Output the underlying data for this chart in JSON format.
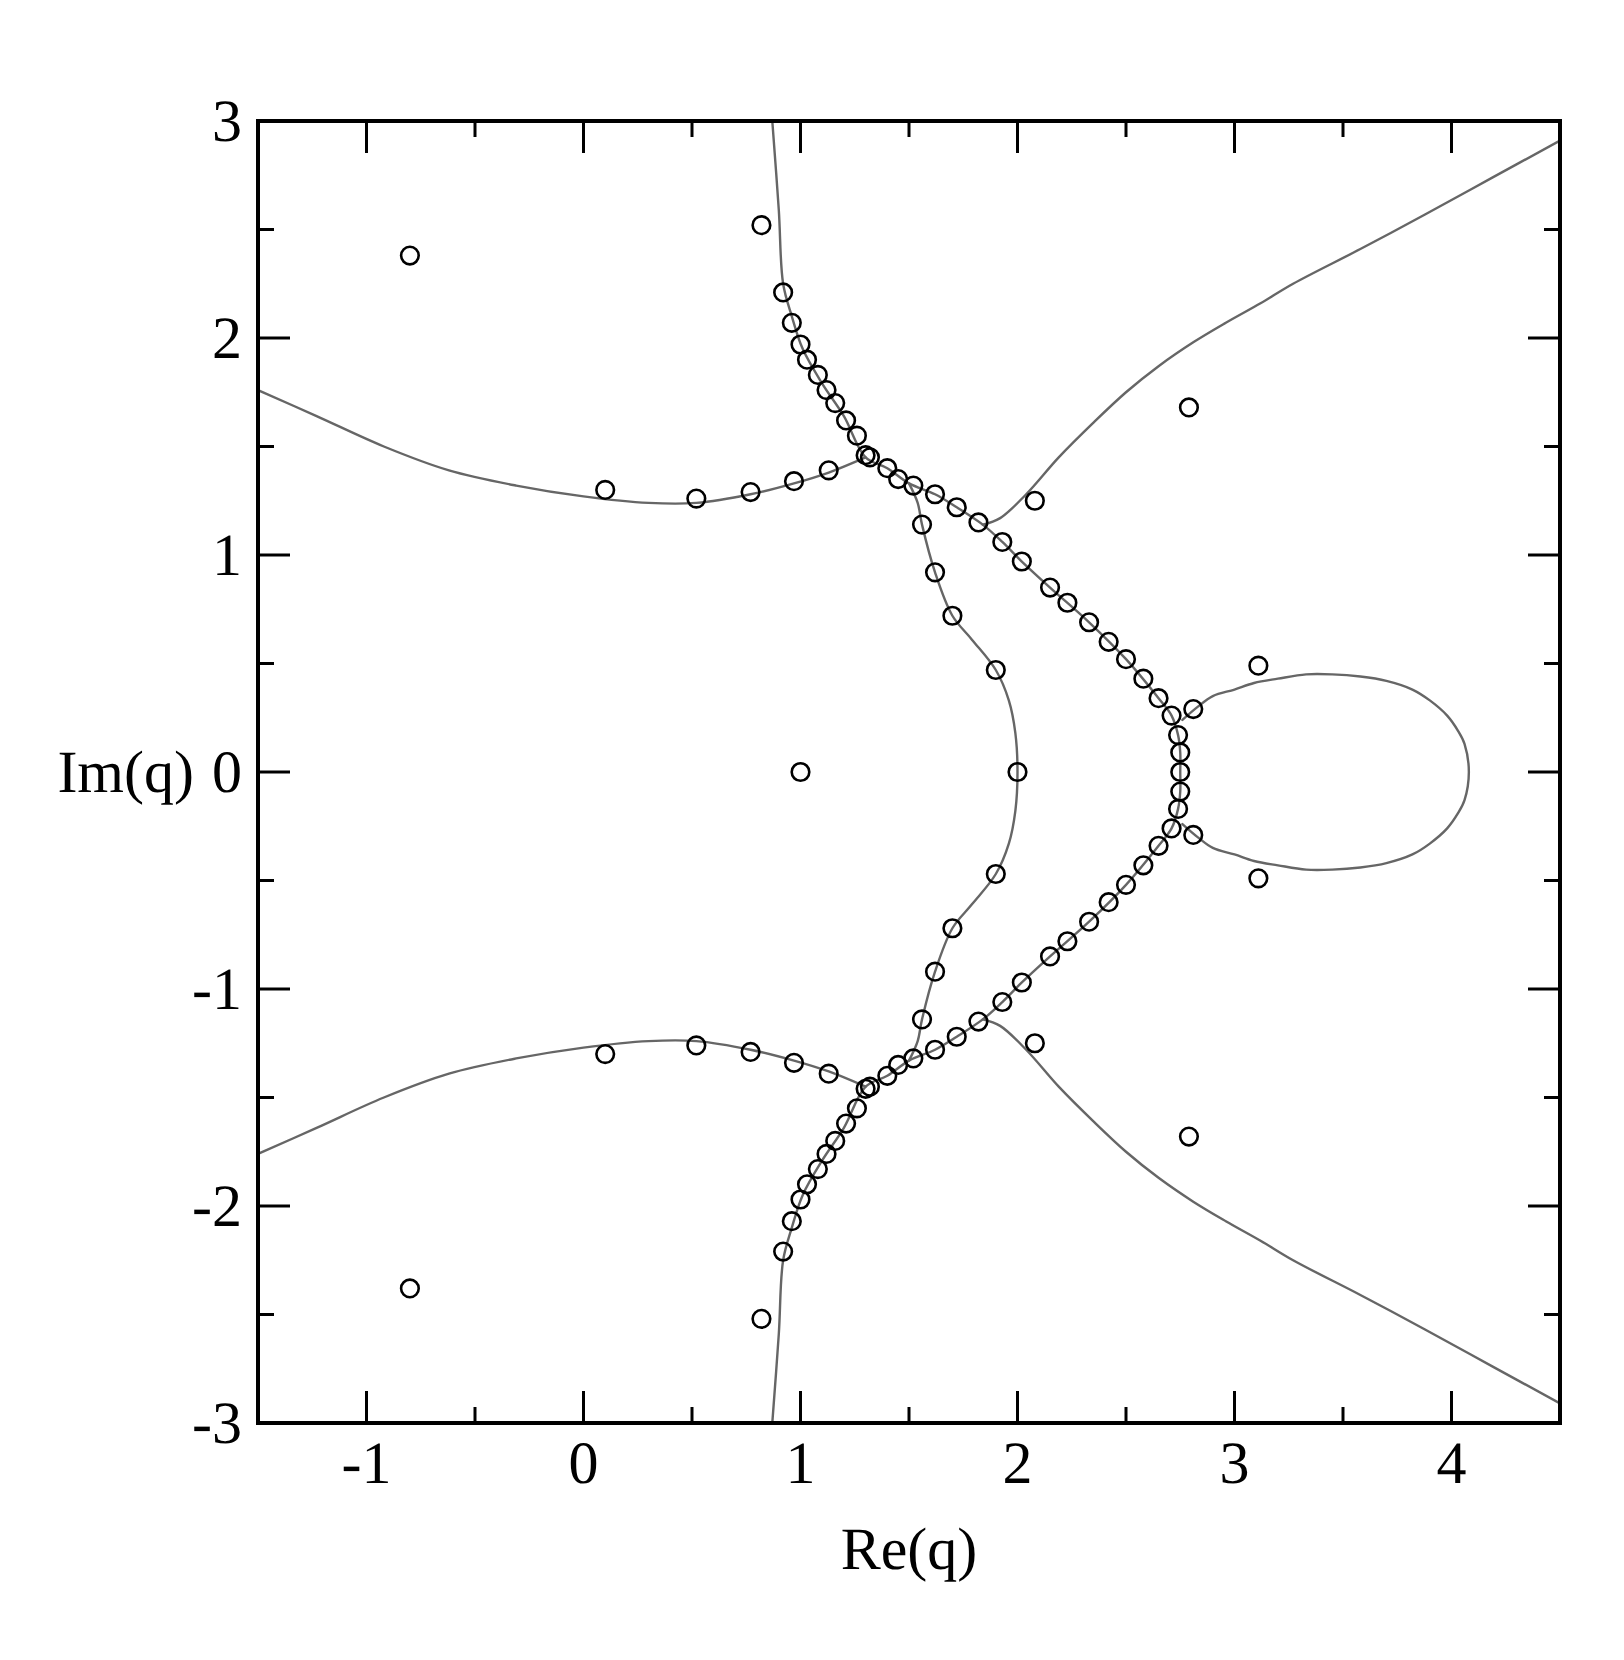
{
  "chart_data": {
    "type": "scatter",
    "xlabel": "Re(q)",
    "ylabel": "Im(q)",
    "xlim": [
      -1.5,
      4.5
    ],
    "ylim": [
      -3,
      3
    ],
    "xticks": [
      -1,
      {
        "value": -0.5,
        "label": null
      },
      0,
      {
        "value": 0.5,
        "label": null
      },
      1,
      {
        "value": 1.5,
        "label": null
      },
      2,
      {
        "value": 2.5,
        "label": null
      },
      3,
      {
        "value": 3.5,
        "label": null
      },
      4
    ],
    "yticks": [
      -3,
      {
        "value": -2.5,
        "label": null
      },
      -2,
      {
        "value": -1.5,
        "label": null
      },
      -1,
      {
        "value": -0.5,
        "label": null
      },
      0,
      {
        "value": 0.5,
        "label": null
      },
      1,
      {
        "value": 1.5,
        "label": null
      },
      2,
      {
        "value": 2.5,
        "label": null
      },
      3
    ],
    "series": [
      {
        "type": "line",
        "color": "#666666",
        "x": [
          -1.5,
          -1.23,
          -0.92,
          -0.62,
          -0.31,
          0.0,
          0.3,
          0.52,
          0.77,
          0.97,
          1.13,
          1.3
        ],
        "values": [
          1.76,
          1.64,
          1.5,
          1.39,
          1.32,
          1.27,
          1.24,
          1.24,
          1.28,
          1.33,
          1.38,
          1.45
        ]
      },
      {
        "type": "line",
        "color": "#666666",
        "x": [
          -1.5,
          -1.23,
          -0.92,
          -0.62,
          -0.31,
          0.0,
          0.3,
          0.52,
          0.77,
          0.97,
          1.13,
          1.3
        ],
        "values": [
          -1.76,
          -1.64,
          -1.5,
          -1.39,
          -1.32,
          -1.27,
          -1.24,
          -1.24,
          -1.28,
          -1.33,
          -1.38,
          -1.45
        ]
      },
      {
        "type": "line",
        "color": "#666666",
        "x": [
          0.87,
          0.9,
          0.92,
          0.96,
          1.01,
          1.1,
          1.2,
          1.3,
          1.4,
          1.5,
          1.62,
          1.72,
          1.84,
          1.93,
          2.02,
          2.15,
          2.33,
          2.5,
          2.65,
          2.71,
          2.74,
          2.75,
          2.75,
          2.75,
          2.74,
          2.71,
          2.65,
          2.5,
          2.33,
          2.15,
          2.02,
          1.93,
          1.84,
          1.72,
          1.62,
          1.5,
          1.4,
          1.3,
          1.2,
          1.1,
          1.01,
          0.96,
          0.92,
          0.9,
          0.87
        ],
        "values": [
          3.0,
          2.59,
          2.25,
          2.1,
          1.95,
          1.79,
          1.64,
          1.45,
          1.4,
          1.33,
          1.28,
          1.22,
          1.14,
          1.06,
          0.97,
          0.85,
          0.69,
          0.52,
          0.34,
          0.26,
          0.17,
          0.09,
          0,
          -0.09,
          -0.17,
          -0.26,
          -0.34,
          -0.52,
          -0.69,
          -0.85,
          -0.97,
          -1.06,
          -1.14,
          -1.22,
          -1.28,
          -1.33,
          -1.4,
          -1.45,
          -1.64,
          -1.79,
          -1.95,
          -2.1,
          -2.25,
          -2.59,
          -3.0
        ]
      },
      {
        "type": "line",
        "color": "#666666",
        "x": [
          1.5,
          1.54,
          1.56,
          1.62,
          1.7,
          1.79,
          1.9,
          1.96,
          1.99,
          2.0,
          1.99,
          1.96,
          1.9,
          1.79,
          1.7,
          1.62,
          1.56,
          1.54,
          1.5
        ],
        "values": [
          1.33,
          1.24,
          1.14,
          0.92,
          0.72,
          0.61,
          0.47,
          0.33,
          0.18,
          0,
          -0.18,
          -0.33,
          -0.47,
          -0.61,
          -0.72,
          -0.92,
          -1.14,
          -1.24,
          -1.33
        ]
      },
      {
        "type": "line",
        "color": "#666666",
        "x": [
          1.84,
          1.92,
          2.04,
          2.19,
          2.35,
          2.5,
          2.65,
          2.81,
          2.96,
          3.12,
          3.27,
          3.58,
          3.88,
          4.19,
          4.5
        ],
        "values": [
          1.14,
          1.17,
          1.28,
          1.45,
          1.61,
          1.75,
          1.87,
          1.98,
          2.07,
          2.16,
          2.25,
          2.41,
          2.57,
          2.74,
          2.91
        ]
      },
      {
        "type": "line",
        "color": "#666666",
        "x": [
          1.84,
          1.92,
          2.04,
          2.19,
          2.35,
          2.5,
          2.65,
          2.81,
          2.96,
          3.12,
          3.27,
          3.58,
          3.88,
          4.19,
          4.5
        ],
        "values": [
          -1.14,
          -1.17,
          -1.28,
          -1.45,
          -1.61,
          -1.75,
          -1.87,
          -1.98,
          -2.07,
          -2.16,
          -2.25,
          -2.41,
          -2.57,
          -2.74,
          -2.91
        ]
      },
      {
        "type": "line",
        "color": "#666666",
        "x": [
          2.76,
          2.83,
          2.9,
          3.0,
          3.09,
          3.2,
          3.33,
          3.45,
          3.58,
          3.7,
          3.82,
          3.9,
          3.98,
          4.03,
          4.06,
          4.08,
          4.06,
          4.03,
          3.98,
          3.9,
          3.82,
          3.7,
          3.58,
          3.45,
          3.33,
          3.2,
          3.09,
          3.0,
          2.9,
          2.83,
          2.76
        ],
        "values": [
          0.24,
          0.3,
          0.35,
          0.38,
          0.41,
          0.43,
          0.45,
          0.45,
          0.44,
          0.42,
          0.38,
          0.33,
          0.26,
          0.19,
          0.13,
          0,
          -0.13,
          -0.19,
          -0.26,
          -0.33,
          -0.38,
          -0.42,
          -0.44,
          -0.45,
          -0.45,
          -0.43,
          -0.41,
          -0.38,
          -0.35,
          -0.3,
          -0.24
        ]
      },
      {
        "color": "#000000",
        "marker": "circle",
        "x": [
          -0.8,
          0.82,
          0.92,
          0.96,
          1.0,
          1.03,
          1.08,
          1.12,
          1.16,
          1.21,
          1.26,
          1.3,
          1.32,
          1.4,
          1.45,
          1.52,
          1.62,
          1.72,
          1.82,
          1.93,
          2.02,
          2.15,
          2.23,
          2.33,
          2.42,
          2.5,
          2.58,
          2.65,
          2.71,
          2.74,
          2.75,
          2.81,
          2.79,
          2.08,
          3.11,
          1.56,
          1.62,
          1.7,
          1.9,
          0.1,
          0.52,
          0.77,
          0.97,
          1.13,
          1.0,
          2.0,
          2.75,
          -0.8,
          0.82,
          0.92,
          0.96,
          1.0,
          1.03,
          1.08,
          1.12,
          1.16,
          1.21,
          1.26,
          1.3,
          1.32,
          1.4,
          1.45,
          1.52,
          1.62,
          1.72,
          1.82,
          1.93,
          2.02,
          2.15,
          2.23,
          2.33,
          2.42,
          2.5,
          2.58,
          2.65,
          2.71,
          2.74,
          2.75,
          2.81,
          2.79,
          2.08,
          3.11,
          1.56,
          1.62,
          1.7,
          1.9,
          0.1,
          0.52,
          0.77,
          0.97,
          1.13
        ],
        "values": [
          2.38,
          2.52,
          2.21,
          2.07,
          1.97,
          1.9,
          1.83,
          1.76,
          1.7,
          1.62,
          1.55,
          1.46,
          1.45,
          1.4,
          1.35,
          1.32,
          1.28,
          1.22,
          1.15,
          1.06,
          0.97,
          0.85,
          0.78,
          0.69,
          0.6,
          0.52,
          0.43,
          0.34,
          0.26,
          0.17,
          0.09,
          0.29,
          1.68,
          1.25,
          0.49,
          1.14,
          0.92,
          0.72,
          0.47,
          1.3,
          1.26,
          1.29,
          1.34,
          1.39,
          0,
          0,
          0,
          -2.38,
          -2.52,
          -2.21,
          -2.07,
          -1.97,
          -1.9,
          -1.83,
          -1.76,
          -1.7,
          -1.62,
          -1.55,
          -1.46,
          -1.45,
          -1.4,
          -1.35,
          -1.32,
          -1.28,
          -1.22,
          -1.15,
          -1.06,
          -0.97,
          -0.85,
          -0.78,
          -0.69,
          -0.6,
          -0.52,
          -0.43,
          -0.34,
          -0.26,
          -0.17,
          -0.09,
          -0.29,
          -1.68,
          -1.25,
          -0.49,
          -1.14,
          -0.92,
          -0.72,
          -0.47,
          -1.3,
          -1.26,
          -1.29,
          -1.34,
          -1.39
        ]
      }
    ]
  }
}
